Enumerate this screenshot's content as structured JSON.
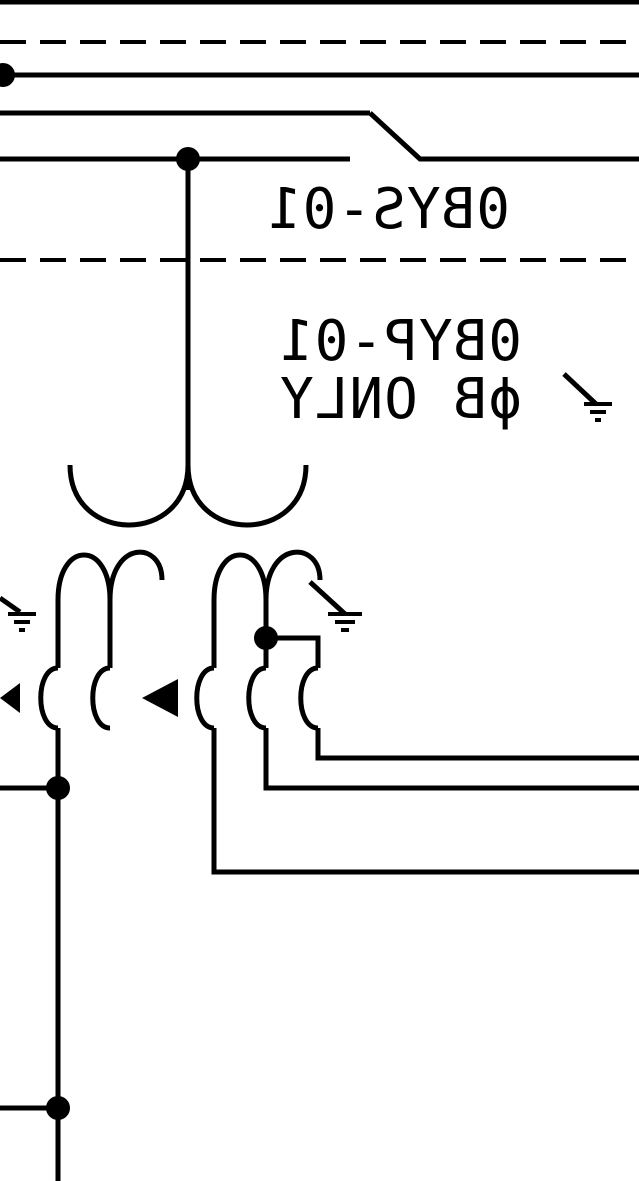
{
  "labels": {
    "secondary_tag": "0BYS-01",
    "primary_tag": "0BYP-01",
    "phase_note": "ϕB ONLY"
  },
  "colors": {
    "ink": "#000000",
    "paper": "#ffffff"
  },
  "symbols": [
    "bus-node",
    "wye-connection",
    "ground-symbol",
    "transformer-winding",
    "polarity-mark"
  ]
}
